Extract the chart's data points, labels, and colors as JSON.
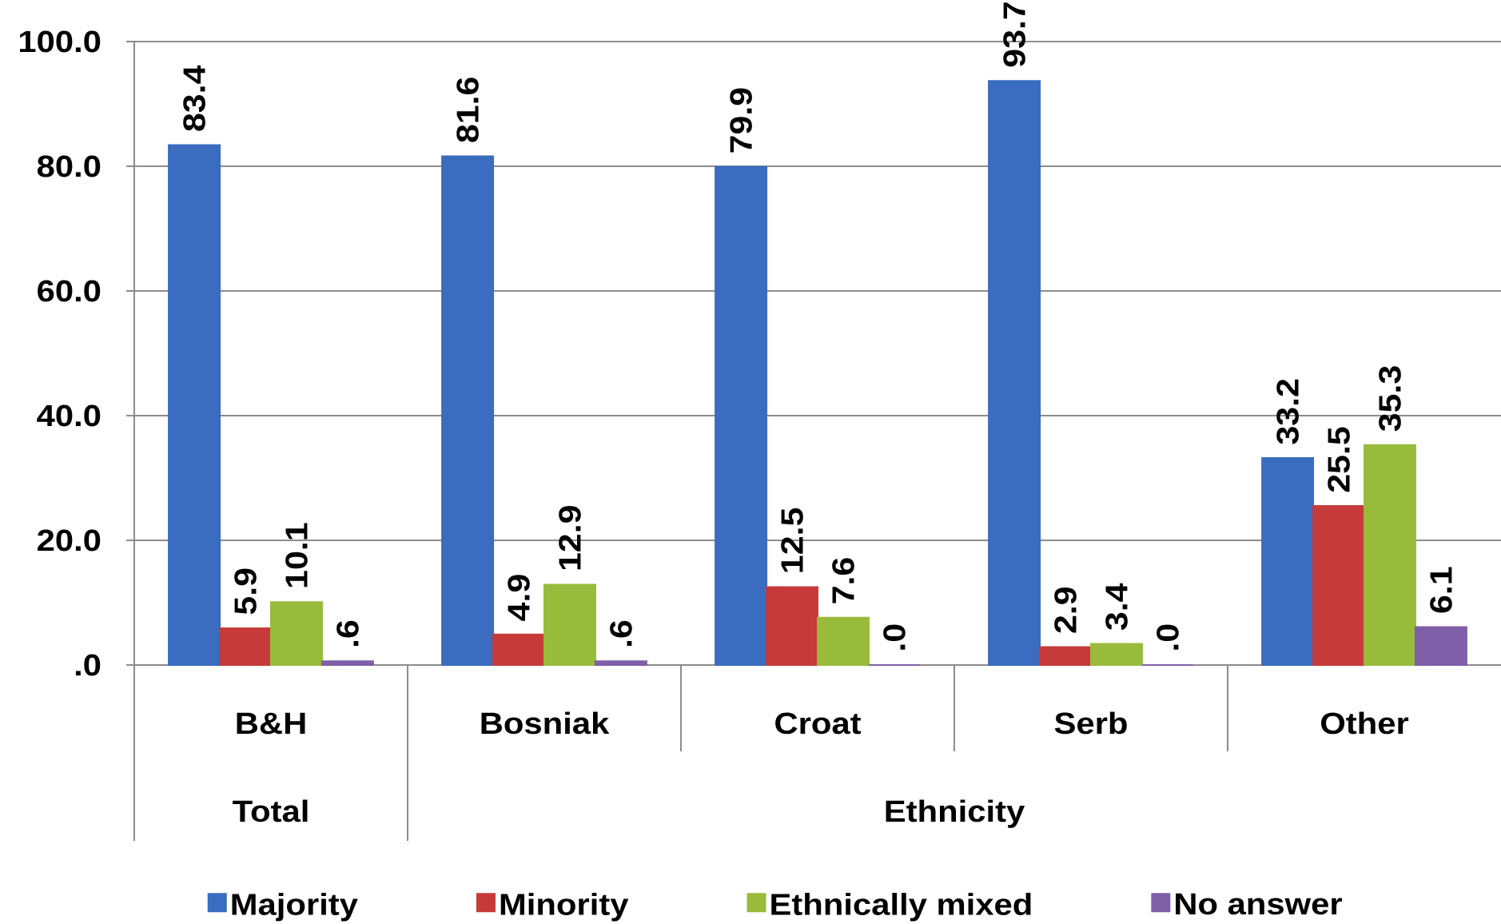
{
  "chart_data": {
    "type": "bar",
    "categories": [
      "B&H",
      "Bosniak",
      "Croat",
      "Serb",
      "Other"
    ],
    "series": [
      {
        "name": "Majority",
        "color": "#3a6cc0",
        "values": [
          83.4,
          81.6,
          79.9,
          93.7,
          33.2
        ],
        "value_labels": [
          "83.4",
          "81.6",
          "79.9",
          "93.7",
          "33.2"
        ]
      },
      {
        "name": "Minority",
        "color": "#c63a3a",
        "values": [
          5.9,
          4.9,
          12.5,
          2.9,
          25.5
        ],
        "value_labels": [
          "5.9",
          "4.9",
          "12.5",
          "2.9",
          "25.5"
        ]
      },
      {
        "name": "Ethnically mixed",
        "color": "#98bb3c",
        "values": [
          10.1,
          12.9,
          7.6,
          3.4,
          35.3
        ],
        "value_labels": [
          "10.1",
          "12.9",
          "7.6",
          "3.4",
          "35.3"
        ]
      },
      {
        "name": "No answer",
        "color": "#7f5fa8",
        "values": [
          0.6,
          0.6,
          0,
          0,
          6.1
        ],
        "value_labels": [
          ".6",
          ".6",
          ".0",
          ".0",
          "6.1"
        ]
      }
    ],
    "ylim": [
      0,
      100
    ],
    "yticks": [
      {
        "value": 0,
        "label": ".0"
      },
      {
        "value": 20,
        "label": "20.0"
      },
      {
        "value": 40,
        "label": "40.0"
      },
      {
        "value": 60,
        "label": "60.0"
      },
      {
        "value": 80,
        "label": "80.0"
      },
      {
        "value": 100,
        "label": "100.0"
      }
    ],
    "grid": "y",
    "legend": "bottom",
    "annotations": [
      "Total",
      "Ethnicity"
    ]
  }
}
